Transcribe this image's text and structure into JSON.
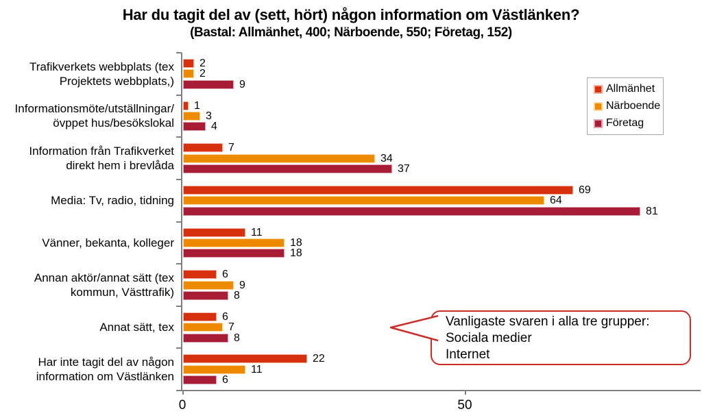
{
  "title": "Har du tagit del av (sett, hört) någon information om Västlänken?",
  "subtitle": "(Bastal: Allmänhet, 400; Närboende, 550; Företag, 152)",
  "legend": {
    "items": [
      {
        "label": "Allmänhet",
        "color": "#d7300f",
        "border": "#f2b09c"
      },
      {
        "label": "Närboende",
        "color": "#ee8a00",
        "border": "#fad7a0"
      },
      {
        "label": "Företag",
        "color": "#a81d35",
        "border": "#db9fad"
      }
    ]
  },
  "callout": {
    "lines": [
      "Vanligaste svaren i alla tre grupper:",
      "Sociala medier",
      "Internet"
    ],
    "border_color": "#ce2b26"
  },
  "x_axis": {
    "tick_labels": [
      "0",
      "50"
    ]
  },
  "chart_data": {
    "type": "bar",
    "orientation": "horizontal",
    "title": "Har du tagit del av (sett, hört) någon information om Västlänken?",
    "subtitle": "(Bastal: Allmänhet, 400; Närboende, 550; Företag, 152)",
    "categories": [
      "Trafikverkets webbplats (tex\nProjektets webbplats,)",
      "Informationsmöte/utställningar/\növppet hus/besökslokal",
      "Information från Trafikverket\ndirekt hem i brevlåda",
      "Media: Tv, radio, tidning",
      "Vänner, bekanta, kolleger",
      "Annan aktör/annat sätt (tex\nkommun, Västtrafik)",
      "Annat sätt, tex",
      "Har inte tagit del av någon\ninformation om Västlänken"
    ],
    "series": [
      {
        "name": "Allmänhet",
        "color": "#d7300f",
        "border": "#f2b09c",
        "values": [
          2,
          1,
          7,
          69,
          11,
          6,
          6,
          22
        ]
      },
      {
        "name": "Närboende",
        "color": "#ee8a00",
        "border": "#fad7a0",
        "values": [
          2,
          3,
          34,
          64,
          18,
          9,
          7,
          11
        ]
      },
      {
        "name": "Företag",
        "color": "#a81d35",
        "border": "#db9fad",
        "values": [
          9,
          4,
          37,
          81,
          18,
          8,
          8,
          6
        ]
      }
    ],
    "x_ticks": [
      0,
      50
    ],
    "x_range": [
      0,
      91.5
    ],
    "grid": false,
    "legend_position": "top-right",
    "annotation": "Vanligaste svaren i alla tre grupper: Sociala medier, Internet"
  }
}
